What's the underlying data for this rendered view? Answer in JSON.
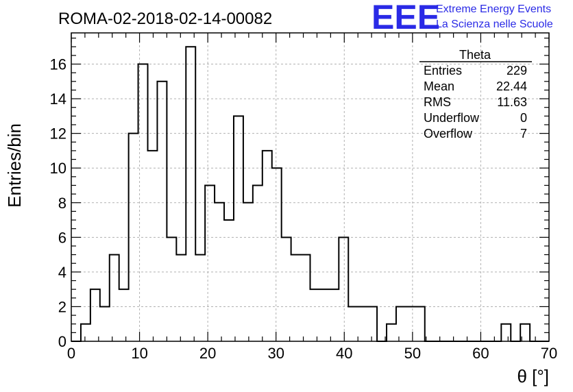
{
  "title": "ROMA-02-2018-02-14-00082",
  "brand": {
    "logo": "EEE",
    "line1": "Extreme Energy Events",
    "line2": "La Scienza nelle Scuole",
    "color": "#2a2ae6"
  },
  "stats": {
    "name": "Theta",
    "rows": [
      {
        "label": "Entries",
        "value": "229"
      },
      {
        "label": "Mean",
        "value": "22.44"
      },
      {
        "label": "RMS",
        "value": "11.63"
      },
      {
        "label": "Underflow",
        "value": "0"
      },
      {
        "label": "Overflow",
        "value": "7"
      }
    ]
  },
  "chart_data": {
    "type": "bar",
    "xlabel": "θ [°]",
    "ylabel": "Entries/bin",
    "xlim": [
      0,
      70
    ],
    "ylim": [
      0,
      17.8
    ],
    "grid": true,
    "bin_width": 1.4,
    "bin_start": 0,
    "values": [
      0,
      1,
      3,
      2,
      5,
      3,
      12,
      16,
      11,
      15,
      6,
      5,
      17,
      5,
      9,
      8,
      7,
      13,
      8,
      9,
      11,
      10,
      6,
      5,
      5,
      3,
      3,
      3,
      6,
      2,
      2,
      2,
      0,
      1,
      2,
      2,
      2,
      0,
      0,
      0,
      0,
      0,
      0,
      0,
      0,
      1,
      0,
      1,
      0,
      0
    ],
    "x_ticks": [
      0,
      10,
      20,
      30,
      40,
      50,
      60,
      70
    ],
    "y_ticks": [
      0,
      2,
      4,
      6,
      8,
      10,
      12,
      14,
      16
    ]
  }
}
